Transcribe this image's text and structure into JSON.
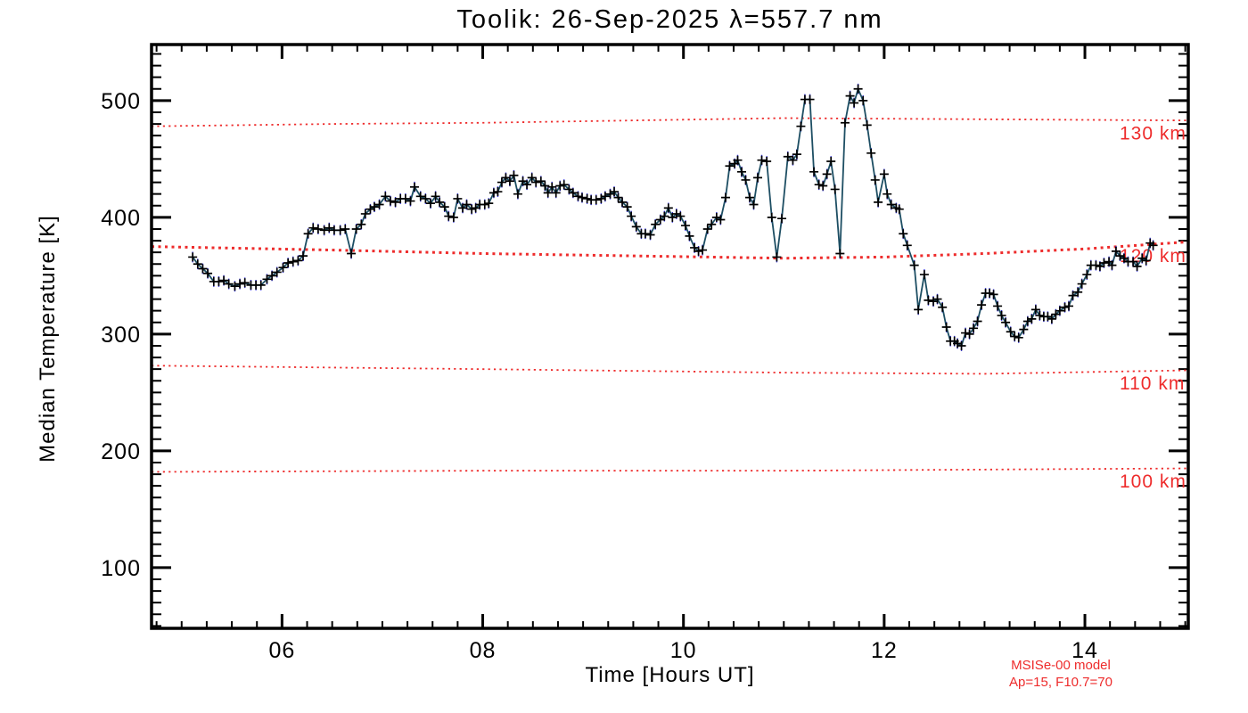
{
  "title": "Toolik: 26-Sep-2025 λ=557.7 nm",
  "annotations": {
    "model_name": "MSISe-00 model",
    "model_params": "Ap=15, F10.7=70"
  },
  "colors": {
    "frame": "#000000",
    "data_line": "#1d4e63",
    "marker": "#000000",
    "error_bar": "#3333dd",
    "model_red": "#ee2c2c",
    "background": "#ffffff"
  },
  "chart_data": {
    "type": "line",
    "title": "Toolik: 26-Sep-2025 λ=557.7 nm",
    "xlabel": "Time [Hours UT]",
    "ylabel": "Median Temperature [K]",
    "xlim": [
      4.7,
      15.03
    ],
    "ylim": [
      48,
      548
    ],
    "x_major_ticks": [
      6,
      8,
      10,
      12,
      14
    ],
    "x_major_labels": [
      "06",
      "08",
      "10",
      "12",
      "14"
    ],
    "x_minor_step": 0.25,
    "y_major_ticks": [
      100,
      200,
      300,
      400,
      500
    ],
    "y_major_labels": [
      "100",
      "200",
      "300",
      "400",
      "500"
    ],
    "y_minor_step": 10,
    "grid": false,
    "legend_position": "none",
    "series": [
      {
        "name": "median-temperature",
        "marker": "plus",
        "error_bar_halfwidth_K": 4.5,
        "points": [
          [
            5.11,
            366
          ],
          [
            5.16,
            360
          ],
          [
            5.21,
            356
          ],
          [
            5.26,
            352
          ],
          [
            5.32,
            345
          ],
          [
            5.37,
            345
          ],
          [
            5.42,
            346
          ],
          [
            5.47,
            343
          ],
          [
            5.53,
            341
          ],
          [
            5.58,
            343
          ],
          [
            5.63,
            344
          ],
          [
            5.69,
            342
          ],
          [
            5.74,
            342
          ],
          [
            5.79,
            342
          ],
          [
            5.85,
            347
          ],
          [
            5.9,
            350
          ],
          [
            5.95,
            353
          ],
          [
            6.01,
            357
          ],
          [
            6.06,
            361
          ],
          [
            6.11,
            362
          ],
          [
            6.16,
            363
          ],
          [
            6.21,
            367
          ],
          [
            6.26,
            386
          ],
          [
            6.31,
            391
          ],
          [
            6.36,
            390
          ],
          [
            6.42,
            389
          ],
          [
            6.47,
            391
          ],
          [
            6.52,
            389
          ],
          [
            6.58,
            389
          ],
          [
            6.63,
            390
          ],
          [
            6.69,
            369
          ],
          [
            6.74,
            390
          ],
          [
            6.79,
            394
          ],
          [
            6.83,
            403
          ],
          [
            6.88,
            407
          ],
          [
            6.92,
            409
          ],
          [
            6.97,
            411
          ],
          [
            7.03,
            418
          ],
          [
            7.08,
            414
          ],
          [
            7.13,
            413
          ],
          [
            7.18,
            416
          ],
          [
            7.23,
            416
          ],
          [
            7.28,
            414
          ],
          [
            7.32,
            426
          ],
          [
            7.38,
            418
          ],
          [
            7.43,
            416
          ],
          [
            7.48,
            412
          ],
          [
            7.53,
            418
          ],
          [
            7.57,
            413
          ],
          [
            7.62,
            409
          ],
          [
            7.66,
            401
          ],
          [
            7.71,
            400
          ],
          [
            7.75,
            416
          ],
          [
            7.8,
            408
          ],
          [
            7.84,
            411
          ],
          [
            7.89,
            407
          ],
          [
            7.93,
            408
          ],
          [
            7.97,
            411
          ],
          [
            8.02,
            411
          ],
          [
            8.06,
            412
          ],
          [
            8.11,
            421
          ],
          [
            8.15,
            422
          ],
          [
            8.19,
            430
          ],
          [
            8.23,
            434
          ],
          [
            8.27,
            431
          ],
          [
            8.31,
            436
          ],
          [
            8.35,
            420
          ],
          [
            8.4,
            431
          ],
          [
            8.44,
            428
          ],
          [
            8.49,
            434
          ],
          [
            8.53,
            430
          ],
          [
            8.58,
            431
          ],
          [
            8.62,
            427
          ],
          [
            8.65,
            421
          ],
          [
            8.69,
            426
          ],
          [
            8.73,
            421
          ],
          [
            8.77,
            427
          ],
          [
            8.81,
            428
          ],
          [
            8.86,
            424
          ],
          [
            8.9,
            421
          ],
          [
            8.95,
            418
          ],
          [
            8.99,
            417
          ],
          [
            9.04,
            416
          ],
          [
            9.08,
            415
          ],
          [
            9.13,
            415
          ],
          [
            9.18,
            416
          ],
          [
            9.22,
            418
          ],
          [
            9.27,
            420
          ],
          [
            9.31,
            422
          ],
          [
            9.35,
            417
          ],
          [
            9.39,
            413
          ],
          [
            9.44,
            409
          ],
          [
            9.48,
            401
          ],
          [
            9.53,
            392
          ],
          [
            9.58,
            386
          ],
          [
            9.62,
            386
          ],
          [
            9.67,
            385
          ],
          [
            9.72,
            394
          ],
          [
            9.77,
            398
          ],
          [
            9.81,
            401
          ],
          [
            9.85,
            408
          ],
          [
            9.89,
            400
          ],
          [
            9.93,
            403
          ],
          [
            9.97,
            401
          ],
          [
            10.02,
            393
          ],
          [
            10.06,
            384
          ],
          [
            10.11,
            374
          ],
          [
            10.15,
            371
          ],
          [
            10.19,
            372
          ],
          [
            10.24,
            390
          ],
          [
            10.28,
            394
          ],
          [
            10.33,
            400
          ],
          [
            10.37,
            398
          ],
          [
            10.42,
            417
          ],
          [
            10.46,
            444
          ],
          [
            10.51,
            446
          ],
          [
            10.54,
            449
          ],
          [
            10.58,
            439
          ],
          [
            10.62,
            432
          ],
          [
            10.66,
            417
          ],
          [
            10.7,
            411
          ],
          [
            10.74,
            434
          ],
          [
            10.78,
            449
          ],
          [
            10.83,
            448
          ],
          [
            10.88,
            400
          ],
          [
            10.93,
            366
          ],
          [
            10.98,
            399
          ],
          [
            11.04,
            452
          ],
          [
            11.09,
            449
          ],
          [
            11.13,
            454
          ],
          [
            11.17,
            478
          ],
          [
            11.21,
            501
          ],
          [
            11.26,
            501
          ],
          [
            11.3,
            439
          ],
          [
            11.35,
            428
          ],
          [
            11.39,
            427
          ],
          [
            11.43,
            437
          ],
          [
            11.47,
            448
          ],
          [
            11.51,
            424
          ],
          [
            11.56,
            369
          ],
          [
            11.61,
            481
          ],
          [
            11.66,
            504
          ],
          [
            11.7,
            498
          ],
          [
            11.74,
            510
          ],
          [
            11.79,
            500
          ],
          [
            11.83,
            479
          ],
          [
            11.87,
            455
          ],
          [
            11.91,
            432
          ],
          [
            11.94,
            413
          ],
          [
            12.0,
            437
          ],
          [
            12.03,
            420
          ],
          [
            12.07,
            411
          ],
          [
            12.12,
            408
          ],
          [
            12.15,
            407
          ],
          [
            12.19,
            386
          ],
          [
            12.23,
            376
          ],
          [
            12.3,
            359
          ],
          [
            12.34,
            321
          ],
          [
            12.4,
            351
          ],
          [
            12.44,
            329
          ],
          [
            12.49,
            328
          ],
          [
            12.53,
            330
          ],
          [
            12.58,
            323
          ],
          [
            12.62,
            306
          ],
          [
            12.66,
            294
          ],
          [
            12.7,
            294
          ],
          [
            12.73,
            292
          ],
          [
            12.77,
            290
          ],
          [
            12.81,
            301
          ],
          [
            12.85,
            300
          ],
          [
            12.89,
            305
          ],
          [
            12.93,
            311
          ],
          [
            12.97,
            325
          ],
          [
            13.01,
            335
          ],
          [
            13.05,
            335
          ],
          [
            13.09,
            334
          ],
          [
            13.13,
            324
          ],
          [
            13.17,
            316
          ],
          [
            13.21,
            310
          ],
          [
            13.26,
            302
          ],
          [
            13.3,
            298
          ],
          [
            13.34,
            297
          ],
          [
            13.39,
            304
          ],
          [
            13.43,
            311
          ],
          [
            13.47,
            313
          ],
          [
            13.51,
            321
          ],
          [
            13.55,
            316
          ],
          [
            13.59,
            315
          ],
          [
            13.63,
            315
          ],
          [
            13.67,
            313
          ],
          [
            13.71,
            317
          ],
          [
            13.75,
            320
          ],
          [
            13.8,
            323
          ],
          [
            13.84,
            324
          ],
          [
            13.88,
            333
          ],
          [
            13.93,
            336
          ],
          [
            13.97,
            343
          ],
          [
            14.02,
            351
          ],
          [
            14.06,
            359
          ],
          [
            14.11,
            359
          ],
          [
            14.15,
            358
          ],
          [
            14.19,
            361
          ],
          [
            14.24,
            362
          ],
          [
            14.27,
            359
          ],
          [
            14.31,
            371
          ],
          [
            14.35,
            367
          ],
          [
            14.39,
            365
          ],
          [
            14.43,
            362
          ],
          [
            14.48,
            362
          ],
          [
            14.52,
            358
          ],
          [
            14.57,
            365
          ],
          [
            14.61,
            363
          ],
          [
            14.65,
            378
          ],
          [
            14.68,
            376
          ]
        ]
      }
    ],
    "model_lines": [
      {
        "name": "msis-130km",
        "label": "130 km",
        "label_T": 472,
        "thick": false,
        "points": [
          [
            4.7,
            478
          ],
          [
            6.5,
            480
          ],
          [
            8.0,
            481
          ],
          [
            9.5,
            483
          ],
          [
            11.0,
            485
          ],
          [
            13.0,
            484
          ],
          [
            15.03,
            483
          ]
        ]
      },
      {
        "name": "msis-120km",
        "label": "120 km",
        "label_T": 367,
        "thick": true,
        "points": [
          [
            4.7,
            375
          ],
          [
            6.5,
            372
          ],
          [
            8.0,
            369
          ],
          [
            9.5,
            367
          ],
          [
            11.0,
            365
          ],
          [
            12.0,
            366
          ],
          [
            13.0,
            369
          ],
          [
            14.0,
            373
          ],
          [
            15.03,
            379
          ]
        ]
      },
      {
        "name": "msis-110km",
        "label": "110 km",
        "label_T": 258,
        "thick": false,
        "points": [
          [
            4.7,
            273
          ],
          [
            8.0,
            270
          ],
          [
            11.0,
            267
          ],
          [
            13.0,
            266
          ],
          [
            15.03,
            269
          ]
        ]
      },
      {
        "name": "msis-100km",
        "label": "100 km",
        "label_T": 174,
        "thick": false,
        "points": [
          [
            4.7,
            182
          ],
          [
            8.0,
            183
          ],
          [
            11.0,
            183
          ],
          [
            15.03,
            185
          ]
        ]
      }
    ]
  }
}
